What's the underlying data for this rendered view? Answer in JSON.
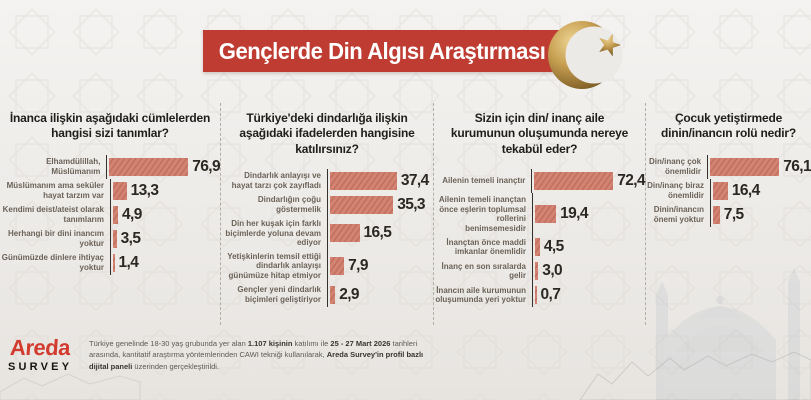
{
  "header": {
    "title": "Gençlerde Din Algısı Araştırması"
  },
  "colors": {
    "banner_red": "#bf3c33",
    "bar_fill": "#d28372",
    "bar_stripe": "#c16e5d",
    "gold": "#c2984e",
    "logo_red": "#d23b2e",
    "background": "#eceae7"
  },
  "chart_data": [
    {
      "type": "bar",
      "orientation": "horizontal",
      "title": "İnanca ilişkin aşağıdaki cümlelerden hangisi sizi tanımlar?",
      "categories": [
        "Elhamdülillah, Müslümanım",
        "Müslümanım ama seküler hayat tarzım var",
        "Kendimi deist/ateist olarak tanımlarım",
        "Herhangi bir dini inancım yoktur",
        "Günümüzde dinlere ihtiyaç yoktur"
      ],
      "values": [
        76.9,
        13.3,
        4.9,
        3.5,
        1.4
      ],
      "value_labels": [
        "76,9",
        "13,3",
        "4,9",
        "3,5",
        "1,4"
      ],
      "xlim": [
        0,
        78
      ],
      "grid": false,
      "legend": "none",
      "unit": "%"
    },
    {
      "type": "bar",
      "orientation": "horizontal",
      "title": "Türkiye'deki dindarlığa ilişkin aşağıdaki ifadelerden hangisine katılırsınız?",
      "categories": [
        "Dindarlık anlayışı ve hayat tarzı çok zayıfladı",
        "Dindarlığın çoğu göstermelik",
        "Din her kuşak için farklı biçimlerde yoluna devam ediyor",
        "Yetişkinlerin temsil ettiği dindarlık anlayışı günümüze hitap etmiyor",
        "Gençler yeni dindarlık biçimleri geliştiriyor"
      ],
      "values": [
        37.4,
        35.3,
        16.5,
        7.9,
        2.9
      ],
      "value_labels": [
        "37,4",
        "35,3",
        "16,5",
        "7,9",
        "2,9"
      ],
      "xlim": [
        0,
        38
      ],
      "grid": false,
      "legend": "none",
      "unit": "%"
    },
    {
      "type": "bar",
      "orientation": "horizontal",
      "title": "Sizin için din/ inanç aile kurumunun oluşumunda nereye tekabül eder?",
      "categories": [
        "Ailenin temeli inançtır",
        "Ailenin temeli inançtan önce eşlerin toplumsal rollerini benimsemesidir",
        "İnançtan önce maddi imkanlar önemlidir",
        "İnanç en son sıralarda gelir",
        "İnancın aile kurumunun oluşumunda yeri yoktur"
      ],
      "values": [
        72.4,
        19.4,
        4.5,
        3.0,
        0.7
      ],
      "value_labels": [
        "72,4",
        "19,4",
        "4,5",
        "3,0",
        "0,7"
      ],
      "xlim": [
        0,
        73.5
      ],
      "grid": false,
      "legend": "none",
      "unit": "%"
    },
    {
      "type": "bar",
      "orientation": "horizontal",
      "title": "Çocuk yetiştirmede dinin/inancın rolü nedir?",
      "categories": [
        "Din/inanç çok önemlidir",
        "Din/inanç biraz önemlidir",
        "Dinin/inancın önemi yoktur"
      ],
      "values": [
        76.1,
        16.4,
        7.5
      ],
      "value_labels": [
        "76,1",
        "16,4",
        "7,5"
      ],
      "xlim": [
        0,
        77
      ],
      "grid": false,
      "legend": "none",
      "unit": "%"
    }
  ],
  "footer": {
    "logo_word": "Areda",
    "logo_sub": "SURVEY",
    "note_parts": {
      "t1": "Türkiye genelinde 18-30 yaş grubunda yer alan ",
      "b1": "1.107 kişinin",
      "t2": " katılımı ile ",
      "b2": "25 - 27 Mart 2026",
      "t3": " tarihleri arasında, kantitatif araştırma yöntemlerinden CAWI tekniği kullanılarak, ",
      "b3": "Areda Survey'in profil bazlı dijital paneli",
      "t4": " üzerinden gerçekleştirildi."
    }
  }
}
